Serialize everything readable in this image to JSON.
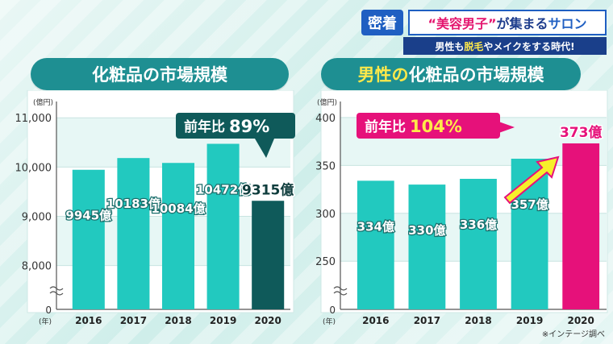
{
  "header": {
    "brand": "密着",
    "title_part1": "“美容男子”",
    "title_part2": "が集まる",
    "title_part3": "サロン",
    "sub_part1": "男性も",
    "sub_part2": "脱毛",
    "sub_part3": "やメイクをする時代!"
  },
  "left_title": "化粧品の市場規模",
  "right_title_part1": "男性の",
  "right_title_part2": "化粧品の市場規模",
  "footnote": "※インテージ調べ",
  "colors": {
    "bar": "#22c9bf",
    "highlight_left": "#0f5a5a",
    "highlight_right": "#e6117a",
    "panel_bg": "#e7f7f5"
  },
  "chart_data": [
    {
      "type": "bar",
      "title": "化粧品の市場規模",
      "unit": "(億円)",
      "year_unit": "(年)",
      "categories": [
        "2016",
        "2017",
        "2018",
        "2019",
        "2020"
      ],
      "values": [
        9945,
        10183,
        10084,
        10472,
        9315
      ],
      "value_labels": [
        "9945億",
        "10183億",
        "10084億",
        "10472億",
        "9315億"
      ],
      "yticks": [
        8000,
        9000,
        10000,
        11000
      ],
      "ytick_labels": [
        "8,000",
        "9,000",
        "10,000",
        "11,000"
      ],
      "zero_label": "0",
      "ylim": [
        7700,
        11200
      ],
      "highlight_index": 4,
      "callout": {
        "text": "前年比",
        "value": "89%"
      }
    },
    {
      "type": "bar",
      "title": "男性の化粧品の市場規模",
      "unit": "(億円)",
      "year_unit": "(年)",
      "categories": [
        "2016",
        "2017",
        "2018",
        "2019",
        "2020"
      ],
      "values": [
        334,
        330,
        336,
        357,
        373
      ],
      "value_labels": [
        "334億",
        "330億",
        "336億",
        "357億",
        "373億"
      ],
      "yticks": [
        250,
        300,
        350,
        400
      ],
      "ytick_labels": [
        "250",
        "300",
        "350",
        "400"
      ],
      "zero_label": "0",
      "ylim": [
        230,
        410
      ],
      "highlight_index": 4,
      "callout": {
        "text": "前年比",
        "value": "104%"
      }
    }
  ]
}
